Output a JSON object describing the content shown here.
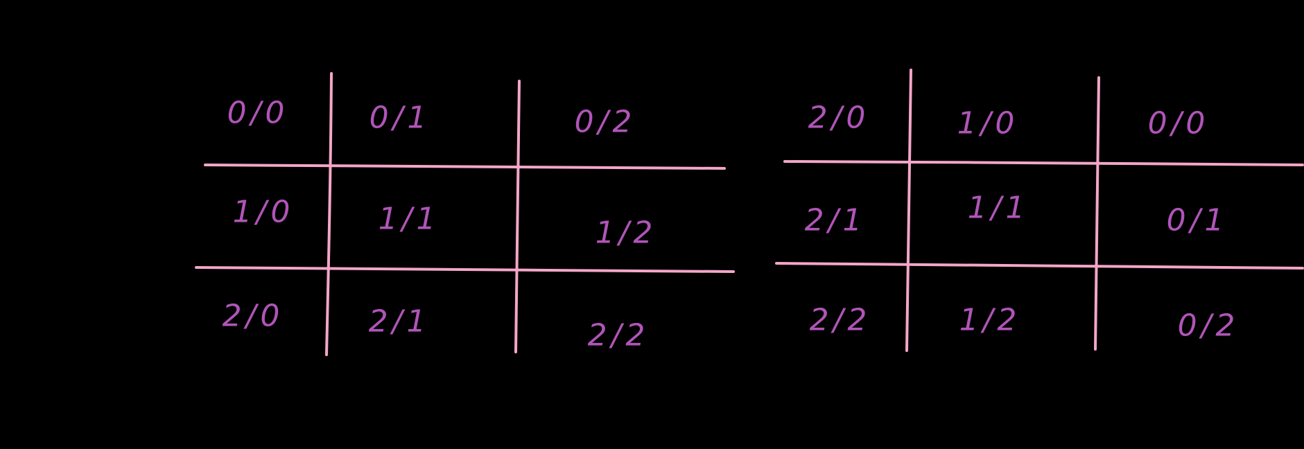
{
  "colors": {
    "background": "#000000",
    "grid_lines": "#f4a6c8",
    "cell_text": "#b055b8"
  },
  "left_grid": {
    "cells": [
      [
        "0/0",
        "0/1",
        "0/2"
      ],
      [
        "1/0",
        "1/1",
        "1/2"
      ],
      [
        "2/0",
        "2/1",
        "2/2"
      ]
    ]
  },
  "right_grid": {
    "cells": [
      [
        "2/0",
        "1/0",
        "0/0"
      ],
      [
        "2/1",
        "1/1",
        "0/1"
      ],
      [
        "2/2",
        "1/2",
        "0/2"
      ]
    ]
  }
}
